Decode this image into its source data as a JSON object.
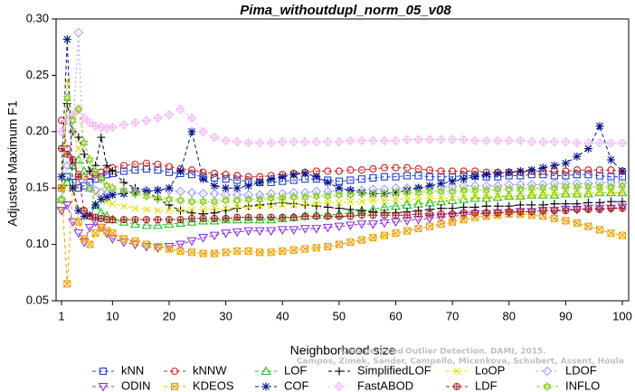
{
  "chart_data": {
    "type": "line",
    "title": "Pima_withoutdupl_norm_05_v08",
    "xlabel": "Neighborhood size",
    "ylabel": "Adjusted Maximum F1",
    "xlim": [
      0,
      101
    ],
    "ylim": [
      0.05,
      0.3
    ],
    "xticks": [
      1,
      10,
      20,
      30,
      40,
      50,
      60,
      70,
      80,
      90,
      100
    ],
    "yticks": [
      "0.05",
      "0.10",
      "0.15",
      "0.20",
      "0.25",
      "0.30"
    ],
    "credit": {
      "line1": "Outlier Detection. DAMI, 2015.",
      "line2": "Campos, Zimek, Sander, Campello, Micenkova, Schubert, Assent, Houle",
      "line1_prefix": "Unsupervised"
    },
    "x": [
      1,
      2,
      3,
      4,
      5,
      6,
      7,
      8,
      9,
      10,
      12,
      14,
      16,
      18,
      20,
      22,
      24,
      26,
      28,
      30,
      32,
      34,
      36,
      38,
      40,
      42,
      44,
      46,
      48,
      50,
      52,
      54,
      56,
      58,
      60,
      62,
      64,
      66,
      68,
      70,
      72,
      74,
      76,
      78,
      80,
      82,
      84,
      86,
      88,
      90,
      92,
      94,
      96,
      98,
      100
    ],
    "series": [
      {
        "name": "kNN",
        "color": "#1f3fd0",
        "marker": "square",
        "dash": "4,3",
        "values": [
          0.15,
          0.16,
          0.155,
          0.15,
          0.152,
          0.155,
          0.158,
          0.16,
          0.162,
          0.163,
          0.165,
          0.166,
          0.167,
          0.166,
          0.164,
          0.163,
          0.162,
          0.16,
          0.159,
          0.158,
          0.157,
          0.156,
          0.155,
          0.155,
          0.156,
          0.157,
          0.158,
          0.158,
          0.157,
          0.156,
          0.157,
          0.158,
          0.159,
          0.16,
          0.16,
          0.161,
          0.161,
          0.16,
          0.16,
          0.16,
          0.161,
          0.161,
          0.16,
          0.16,
          0.161,
          0.161,
          0.162,
          0.162,
          0.161,
          0.161,
          0.162,
          0.162,
          0.161,
          0.16,
          0.16
        ]
      },
      {
        "name": "kNNW",
        "color": "#d02020",
        "marker": "circle",
        "dash": "4,3",
        "values": [
          0.21,
          0.185,
          0.17,
          0.162,
          0.16,
          0.161,
          0.162,
          0.164,
          0.166,
          0.168,
          0.17,
          0.171,
          0.172,
          0.171,
          0.169,
          0.167,
          0.166,
          0.164,
          0.163,
          0.162,
          0.161,
          0.16,
          0.16,
          0.161,
          0.162,
          0.163,
          0.164,
          0.165,
          0.165,
          0.165,
          0.166,
          0.166,
          0.167,
          0.168,
          0.168,
          0.168,
          0.167,
          0.166,
          0.165,
          0.165,
          0.165,
          0.165,
          0.164,
          0.164,
          0.164,
          0.164,
          0.165,
          0.165,
          0.165,
          0.165,
          0.166,
          0.166,
          0.166,
          0.166,
          0.165
        ]
      },
      {
        "name": "LOF",
        "color": "#20c020",
        "marker": "triangle-up",
        "dash": "4,3",
        "values": [
          0.14,
          0.155,
          0.17,
          0.175,
          0.165,
          0.15,
          0.135,
          0.128,
          0.125,
          0.122,
          0.12,
          0.118,
          0.117,
          0.117,
          0.118,
          0.119,
          0.12,
          0.121,
          0.121,
          0.122,
          0.122,
          0.122,
          0.122,
          0.122,
          0.123,
          0.124,
          0.125,
          0.126,
          0.126,
          0.127,
          0.128,
          0.13,
          0.131,
          0.133,
          0.134,
          0.135,
          0.136,
          0.137,
          0.138,
          0.139,
          0.14,
          0.141,
          0.141,
          0.142,
          0.143,
          0.143,
          0.144,
          0.144,
          0.144,
          0.145,
          0.145,
          0.145,
          0.146,
          0.146,
          0.146
        ]
      },
      {
        "name": "SimplifiedLOF",
        "color": "#000000",
        "marker": "plus",
        "dash": "4,3",
        "values": [
          0.15,
          0.225,
          0.2,
          0.195,
          0.18,
          0.165,
          0.17,
          0.195,
          0.17,
          0.165,
          0.155,
          0.15,
          0.148,
          0.14,
          0.135,
          0.13,
          0.128,
          0.127,
          0.128,
          0.13,
          0.132,
          0.134,
          0.135,
          0.136,
          0.137,
          0.136,
          0.135,
          0.134,
          0.133,
          0.132,
          0.131,
          0.13,
          0.129,
          0.128,
          0.128,
          0.129,
          0.13,
          0.131,
          0.132,
          0.132,
          0.133,
          0.133,
          0.134,
          0.134,
          0.134,
          0.135,
          0.135,
          0.135,
          0.136,
          0.136,
          0.136,
          0.137,
          0.137,
          0.138,
          0.138
        ]
      },
      {
        "name": "LoOP",
        "color": "#e0e000",
        "marker": "x",
        "dash": "4,3",
        "values": [
          0.13,
          0.245,
          0.2,
          0.185,
          0.16,
          0.15,
          0.145,
          0.14,
          0.138,
          0.136,
          0.134,
          0.132,
          0.131,
          0.13,
          0.13,
          0.13,
          0.131,
          0.131,
          0.132,
          0.132,
          0.133,
          0.133,
          0.134,
          0.134,
          0.135,
          0.135,
          0.136,
          0.136,
          0.137,
          0.137,
          0.138,
          0.138,
          0.139,
          0.139,
          0.14,
          0.14,
          0.14,
          0.141,
          0.141,
          0.141,
          0.142,
          0.142,
          0.142,
          0.143,
          0.143,
          0.143,
          0.144,
          0.144,
          0.144,
          0.145,
          0.145,
          0.145,
          0.146,
          0.146,
          0.146
        ]
      },
      {
        "name": "LDOF",
        "color": "#a0a0ff",
        "marker": "diamond",
        "dash": "2,3",
        "values": [
          0.14,
          0.17,
          0.2,
          0.288,
          0.16,
          0.15,
          0.148,
          0.146,
          0.145,
          0.145,
          0.146,
          0.147,
          0.148,
          0.148,
          0.148,
          0.147,
          0.146,
          0.145,
          0.145,
          0.144,
          0.144,
          0.144,
          0.144,
          0.145,
          0.145,
          0.146,
          0.146,
          0.147,
          0.147,
          0.148,
          0.148,
          0.148,
          0.149,
          0.149,
          0.15,
          0.15,
          0.15,
          0.151,
          0.151,
          0.151,
          0.152,
          0.152,
          0.152,
          0.152,
          0.153,
          0.153,
          0.153,
          0.153,
          0.154,
          0.154,
          0.154,
          0.154,
          0.155,
          0.155,
          0.155
        ]
      },
      {
        "name": "ODIN",
        "color": "#9030e0",
        "marker": "triangle-down",
        "dash": "4,3",
        "values": [
          0.13,
          0.135,
          0.12,
          0.11,
          0.102,
          0.115,
          0.12,
          0.115,
          0.11,
          0.105,
          0.102,
          0.1,
          0.098,
          0.097,
          0.098,
          0.1,
          0.103,
          0.106,
          0.108,
          0.11,
          0.111,
          0.112,
          0.112,
          0.112,
          0.113,
          0.113,
          0.114,
          0.114,
          0.115,
          0.116,
          0.117,
          0.118,
          0.118,
          0.119,
          0.12,
          0.121,
          0.122,
          0.123,
          0.124,
          0.125,
          0.126,
          0.127,
          0.127,
          0.128,
          0.128,
          0.129,
          0.129,
          0.13,
          0.13,
          0.131,
          0.131,
          0.132,
          0.132,
          0.132,
          0.133
        ]
      },
      {
        "name": "KDEOS",
        "color": "#f0a000",
        "marker": "square-x",
        "dash": "4,3",
        "values": [
          0.15,
          0.065,
          0.15,
          0.12,
          0.105,
          0.1,
          0.11,
          0.115,
          0.112,
          0.11,
          0.105,
          0.103,
          0.1,
          0.098,
          0.096,
          0.094,
          0.093,
          0.092,
          0.092,
          0.093,
          0.094,
          0.094,
          0.093,
          0.093,
          0.094,
          0.095,
          0.096,
          0.097,
          0.098,
          0.1,
          0.102,
          0.104,
          0.106,
          0.108,
          0.11,
          0.112,
          0.114,
          0.116,
          0.118,
          0.12,
          0.122,
          0.124,
          0.125,
          0.126,
          0.127,
          0.127,
          0.126,
          0.125,
          0.123,
          0.121,
          0.119,
          0.116,
          0.113,
          0.11,
          0.108
        ]
      },
      {
        "name": "COF",
        "color": "#00108a",
        "marker": "asterisk",
        "dash": "4,3",
        "values": [
          0.16,
          0.282,
          0.15,
          0.13,
          0.125,
          0.126,
          0.135,
          0.14,
          0.142,
          0.144,
          0.145,
          0.146,
          0.147,
          0.148,
          0.15,
          0.165,
          0.2,
          0.158,
          0.152,
          0.15,
          0.15,
          0.152,
          0.155,
          0.158,
          0.16,
          0.162,
          0.163,
          0.16,
          0.155,
          0.15,
          0.148,
          0.146,
          0.145,
          0.145,
          0.146,
          0.148,
          0.15,
          0.152,
          0.154,
          0.156,
          0.158,
          0.16,
          0.162,
          0.163,
          0.164,
          0.165,
          0.166,
          0.168,
          0.17,
          0.172,
          0.178,
          0.185,
          0.205,
          0.175,
          0.165
        ]
      },
      {
        "name": "FastABOD",
        "color": "#f5b8f5",
        "marker": "diamond-plus",
        "dash": "2,3",
        "values": [
          0.2,
          0.21,
          0.215,
          0.22,
          0.212,
          0.208,
          0.205,
          0.204,
          0.203,
          0.204,
          0.206,
          0.208,
          0.21,
          0.212,
          0.215,
          0.22,
          0.212,
          0.2,
          0.195,
          0.192,
          0.191,
          0.19,
          0.19,
          0.19,
          0.191,
          0.191,
          0.191,
          0.191,
          0.191,
          0.191,
          0.192,
          0.192,
          0.192,
          0.192,
          0.192,
          0.193,
          0.193,
          0.193,
          0.193,
          0.193,
          0.193,
          0.192,
          0.192,
          0.192,
          0.192,
          0.192,
          0.191,
          0.191,
          0.191,
          0.191,
          0.19,
          0.19,
          0.19,
          0.19,
          0.19
        ]
      },
      {
        "name": "LDF",
        "color": "#a02020",
        "marker": "circle-plus",
        "dash": "4,3",
        "values": [
          0.185,
          0.18,
          0.175,
          0.16,
          0.13,
          0.125,
          0.124,
          0.123,
          0.122,
          0.122,
          0.122,
          0.122,
          0.122,
          0.122,
          0.122,
          0.122,
          0.123,
          0.123,
          0.123,
          0.123,
          0.124,
          0.124,
          0.124,
          0.124,
          0.124,
          0.124,
          0.125,
          0.125,
          0.125,
          0.125,
          0.125,
          0.126,
          0.126,
          0.126,
          0.126,
          0.126,
          0.127,
          0.127,
          0.127,
          0.127,
          0.128,
          0.128,
          0.128,
          0.128,
          0.129,
          0.129,
          0.129,
          0.13,
          0.13,
          0.13,
          0.131,
          0.131,
          0.131,
          0.132,
          0.132
        ]
      },
      {
        "name": "INFLO",
        "color": "#90d030",
        "marker": "hex-star",
        "dash": "4,3",
        "values": [
          0.14,
          0.23,
          0.21,
          0.22,
          0.19,
          0.175,
          0.165,
          0.158,
          0.152,
          0.15,
          0.148,
          0.145,
          0.143,
          0.141,
          0.14,
          0.139,
          0.138,
          0.138,
          0.138,
          0.139,
          0.139,
          0.14,
          0.14,
          0.141,
          0.141,
          0.142,
          0.142,
          0.143,
          0.143,
          0.144,
          0.144,
          0.145,
          0.145,
          0.145,
          0.146,
          0.146,
          0.146,
          0.147,
          0.147,
          0.147,
          0.148,
          0.148,
          0.148,
          0.149,
          0.149,
          0.149,
          0.15,
          0.15,
          0.15,
          0.151,
          0.151,
          0.151,
          0.151,
          0.151,
          0.152
        ]
      }
    ]
  }
}
